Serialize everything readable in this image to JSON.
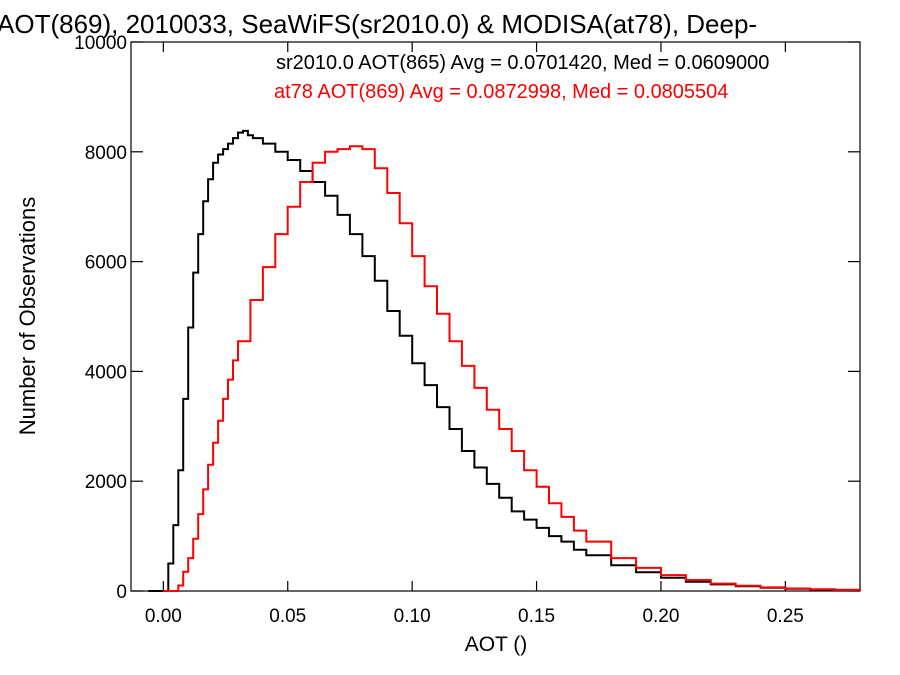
{
  "chart_data": {
    "type": "line",
    "title": "AOT(869), 2010033, SeaWiFS(sr2010.0) & MODISA(at78), Deep-",
    "xlabel": "AOT ()",
    "ylabel": "Number of Observations",
    "xlim": [
      -0.013,
      0.28
    ],
    "ylim": [
      0,
      10000
    ],
    "x_ticks": [
      0.0,
      0.05,
      0.1,
      0.15,
      0.2,
      0.25
    ],
    "x_tick_labels": [
      "0.00",
      "0.05",
      "0.10",
      "0.15",
      "0.20",
      "0.25"
    ],
    "y_ticks": [
      0,
      2000,
      4000,
      6000,
      8000,
      10000
    ],
    "y_tick_labels": [
      "0",
      "2000",
      "4000",
      "6000",
      "8000",
      "10000"
    ],
    "grid": false,
    "annotations": [
      {
        "text": "sr2010.0 AOT(865) Avg = 0.0701420, Med = 0.0609000",
        "color": "#000000"
      },
      {
        "text": "at78 AOT(869) Avg = 0.0872998, Med = 0.0805504",
        "color": "#ff0000"
      }
    ],
    "series": [
      {
        "color": "#000000",
        "x": [
          -0.006,
          0.0,
          0.002,
          0.004,
          0.006,
          0.008,
          0.01,
          0.012,
          0.014,
          0.016,
          0.018,
          0.02,
          0.022,
          0.024,
          0.026,
          0.028,
          0.03,
          0.032,
          0.034,
          0.036,
          0.04,
          0.045,
          0.05,
          0.055,
          0.06,
          0.065,
          0.07,
          0.075,
          0.08,
          0.085,
          0.09,
          0.095,
          0.1,
          0.105,
          0.11,
          0.115,
          0.12,
          0.125,
          0.13,
          0.135,
          0.14,
          0.145,
          0.15,
          0.155,
          0.16,
          0.165,
          0.17,
          0.18,
          0.19,
          0.2,
          0.21,
          0.22,
          0.23,
          0.24,
          0.25,
          0.26,
          0.27,
          0.28
        ],
        "y": [
          0,
          0,
          500,
          1200,
          2200,
          3500,
          4800,
          5800,
          6500,
          7100,
          7500,
          7800,
          7950,
          8050,
          8150,
          8250,
          8350,
          8380,
          8300,
          8250,
          8150,
          8000,
          7850,
          7650,
          7450,
          7200,
          6850,
          6500,
          6100,
          5650,
          5100,
          4650,
          4150,
          3750,
          3350,
          2950,
          2550,
          2250,
          1950,
          1700,
          1450,
          1300,
          1150,
          1000,
          900,
          750,
          650,
          470,
          340,
          240,
          170,
          120,
          85,
          60,
          42,
          30,
          20,
          12
        ]
      },
      {
        "color": "#ff0000",
        "x": [
          0.0,
          0.004,
          0.006,
          0.008,
          0.01,
          0.012,
          0.014,
          0.016,
          0.018,
          0.02,
          0.022,
          0.024,
          0.026,
          0.028,
          0.03,
          0.035,
          0.04,
          0.045,
          0.05,
          0.055,
          0.06,
          0.065,
          0.07,
          0.075,
          0.08,
          0.085,
          0.09,
          0.095,
          0.1,
          0.105,
          0.11,
          0.115,
          0.12,
          0.125,
          0.13,
          0.135,
          0.14,
          0.145,
          0.15,
          0.155,
          0.16,
          0.165,
          0.17,
          0.18,
          0.19,
          0.2,
          0.21,
          0.22,
          0.23,
          0.24,
          0.25,
          0.26,
          0.27,
          0.28
        ],
        "y": [
          0,
          0,
          100,
          350,
          600,
          950,
          1400,
          1850,
          2300,
          2700,
          3100,
          3500,
          3850,
          4200,
          4550,
          5300,
          5900,
          6500,
          7000,
          7450,
          7800,
          8000,
          8050,
          8100,
          8050,
          7700,
          7250,
          6700,
          6100,
          5550,
          5050,
          4550,
          4100,
          3700,
          3300,
          2950,
          2550,
          2200,
          1900,
          1600,
          1350,
          1100,
          900,
          600,
          420,
          290,
          200,
          135,
          95,
          65,
          45,
          30,
          20,
          12
        ]
      }
    ]
  }
}
